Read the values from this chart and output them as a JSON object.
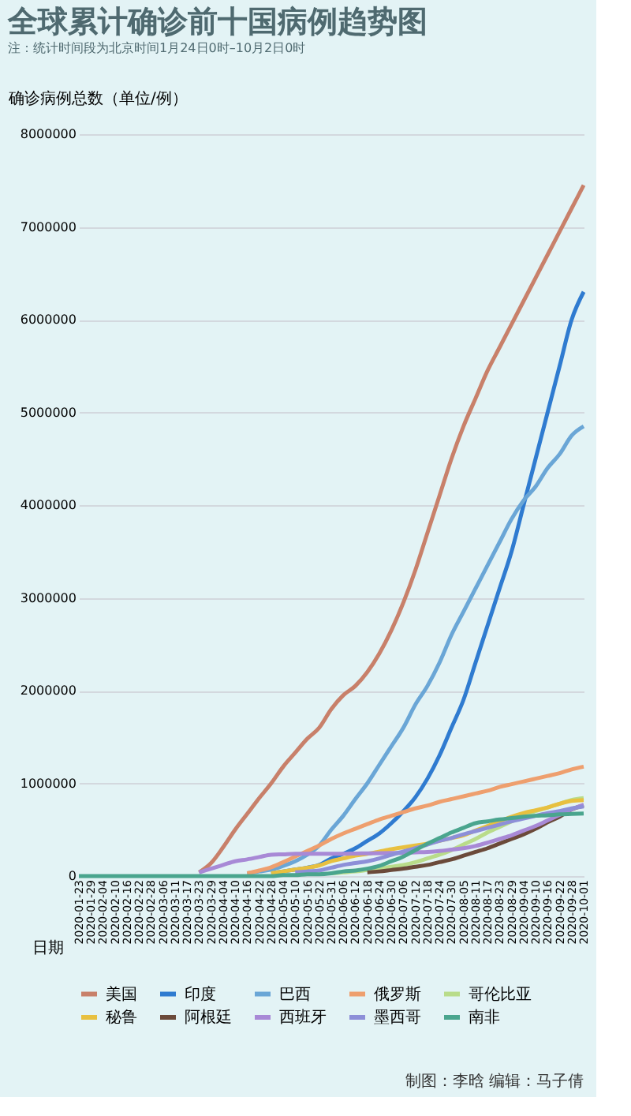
{
  "chart_data": {
    "type": "line",
    "title": "全球累计确诊前十国病例趋势图",
    "subtitle": "注：统计时间段为北京时间1月24日0时–10月2日0时",
    "ylabel": "确诊病例总数（单位/例）",
    "xlabel": "日期",
    "categories": [
      "2020-01-23",
      "2020-01-29",
      "2020-02-04",
      "2020-02-10",
      "2020-02-16",
      "2020-02-22",
      "2020-02-28",
      "2020-03-06",
      "2020-03-11",
      "2020-03-17",
      "2020-03-23",
      "2020-03-29",
      "2020-04-04",
      "2020-04-10",
      "2020-04-16",
      "2020-04-22",
      "2020-04-28",
      "2020-05-04",
      "2020-05-10",
      "2020-05-16",
      "2020-05-22",
      "2020-05-31",
      "2020-06-06",
      "2020-06-12",
      "2020-06-18",
      "2020-06-24",
      "2020-06-30",
      "2020-07-06",
      "2020-07-12",
      "2020-07-18",
      "2020-07-24",
      "2020-07-30",
      "2020-08-05",
      "2020-08-11",
      "2020-08-17",
      "2020-08-23",
      "2020-08-29",
      "2020-09-04",
      "2020-09-10",
      "2020-09-16",
      "2020-09-22",
      "2020-09-28",
      "2020-10-01"
    ],
    "series": [
      {
        "name": "美国",
        "color": "#c8806a",
        "values": [
          null,
          null,
          null,
          null,
          null,
          null,
          null,
          null,
          null,
          null,
          40000,
          140000,
          310000,
          500000,
          670000,
          840000,
          1000000,
          1180000,
          1330000,
          1480000,
          1600000,
          1800000,
          1950000,
          2050000,
          2200000,
          2400000,
          2650000,
          2950000,
          3300000,
          3700000,
          4100000,
          4500000,
          4850000,
          5150000,
          5450000,
          5700000,
          5950000,
          6200000,
          6450000,
          6700000,
          6950000,
          7200000,
          7450000
        ]
      },
      {
        "name": "印度",
        "color": "#2f7bd0",
        "values": [
          null,
          null,
          null,
          null,
          null,
          null,
          null,
          null,
          null,
          null,
          null,
          null,
          null,
          null,
          null,
          null,
          30000,
          50000,
          70000,
          90000,
          120000,
          190000,
          240000,
          300000,
          380000,
          460000,
          570000,
          700000,
          850000,
          1050000,
          1300000,
          1600000,
          1900000,
          2300000,
          2700000,
          3100000,
          3500000,
          4000000,
          4500000,
          5000000,
          5500000,
          6000000,
          6300000
        ]
      },
      {
        "name": "巴西",
        "color": "#6aa6d6",
        "values": [
          null,
          null,
          null,
          null,
          null,
          null,
          null,
          null,
          null,
          null,
          null,
          null,
          null,
          null,
          30000,
          50000,
          70000,
          110000,
          160000,
          230000,
          330000,
          500000,
          650000,
          830000,
          1000000,
          1200000,
          1400000,
          1600000,
          1850000,
          2050000,
          2300000,
          2600000,
          2850000,
          3100000,
          3350000,
          3600000,
          3850000,
          4050000,
          4200000,
          4400000,
          4550000,
          4750000,
          4850000
        ]
      },
      {
        "name": "俄罗斯",
        "color": "#ee9f6e",
        "values": [
          null,
          null,
          null,
          null,
          null,
          null,
          null,
          null,
          null,
          null,
          null,
          null,
          null,
          null,
          30000,
          60000,
          95000,
          150000,
          210000,
          270000,
          330000,
          400000,
          460000,
          510000,
          560000,
          610000,
          650000,
          690000,
          730000,
          760000,
          800000,
          830000,
          860000,
          890000,
          920000,
          960000,
          990000,
          1020000,
          1050000,
          1080000,
          1110000,
          1150000,
          1180000
        ]
      },
      {
        "name": "哥伦比亚",
        "color": "#b9dc8a",
        "values": [
          null,
          null,
          null,
          null,
          null,
          null,
          null,
          null,
          null,
          null,
          null,
          null,
          null,
          null,
          null,
          null,
          null,
          null,
          null,
          null,
          null,
          30000,
          40000,
          50000,
          65000,
          80000,
          100000,
          120000,
          150000,
          190000,
          230000,
          280000,
          340000,
          400000,
          470000,
          530000,
          590000,
          650000,
          700000,
          740000,
          780000,
          820000,
          840000
        ]
      },
      {
        "name": "秘鲁",
        "color": "#e8c040",
        "values": [
          null,
          null,
          null,
          null,
          null,
          null,
          null,
          null,
          null,
          null,
          null,
          null,
          null,
          null,
          null,
          null,
          30000,
          50000,
          70000,
          90000,
          115000,
          160000,
          190000,
          220000,
          240000,
          265000,
          290000,
          310000,
          330000,
          350000,
          380000,
          410000,
          440000,
          490000,
          540000,
          590000,
          640000,
          680000,
          710000,
          740000,
          780000,
          810000,
          820000
        ]
      },
      {
        "name": "阿根廷",
        "color": "#6b4a3a",
        "values": [
          null,
          null,
          null,
          null,
          null,
          null,
          null,
          null,
          null,
          null,
          null,
          null,
          null,
          null,
          null,
          null,
          null,
          null,
          null,
          null,
          null,
          null,
          null,
          null,
          40000,
          50000,
          65000,
          80000,
          100000,
          120000,
          150000,
          180000,
          220000,
          260000,
          300000,
          350000,
          400000,
          450000,
          510000,
          580000,
          640000,
          720000,
          760000
        ]
      },
      {
        "name": "西班牙",
        "color": "#a889d6",
        "values": [
          null,
          null,
          null,
          null,
          null,
          null,
          null,
          null,
          null,
          null,
          40000,
          80000,
          120000,
          160000,
          180000,
          205000,
          230000,
          235000,
          240000,
          240000,
          240000,
          240000,
          240000,
          243000,
          245000,
          247000,
          249000,
          250000,
          255000,
          260000,
          270000,
          285000,
          300000,
          325000,
          360000,
          400000,
          440000,
          490000,
          540000,
          600000,
          660000,
          720000,
          770000
        ]
      },
      {
        "name": "墨西哥",
        "color": "#8d8fd8",
        "values": [
          null,
          null,
          null,
          null,
          null,
          null,
          null,
          null,
          null,
          null,
          null,
          null,
          null,
          null,
          null,
          null,
          null,
          null,
          40000,
          50000,
          60000,
          90000,
          120000,
          140000,
          160000,
          190000,
          230000,
          265000,
          300000,
          340000,
          380000,
          410000,
          450000,
          485000,
          520000,
          555000,
          590000,
          620000,
          650000,
          680000,
          700000,
          730000,
          750000
        ]
      },
      {
        "name": "南非",
        "color": "#4aa58e",
        "values": [
          0,
          0,
          0,
          0,
          0,
          0,
          0,
          0,
          0,
          0,
          0,
          0,
          0,
          0,
          0,
          0,
          0,
          10000,
          10000,
          20000,
          20000,
          30000,
          50000,
          60000,
          80000,
          110000,
          160000,
          210000,
          280000,
          350000,
          410000,
          470000,
          520000,
          570000,
          590000,
          610000,
          625000,
          640000,
          650000,
          655000,
          665000,
          670000,
          675000
        ]
      }
    ],
    "ylim": [
      0,
      8000000
    ],
    "yticks": [
      0,
      1000000,
      2000000,
      3000000,
      4000000,
      5000000,
      6000000,
      7000000,
      8000000
    ],
    "grid": "y",
    "legend": "bottom",
    "marker": "none",
    "line_style": "solid",
    "annotations": [
      "制图：李晗 编辑：马子倩"
    ]
  }
}
